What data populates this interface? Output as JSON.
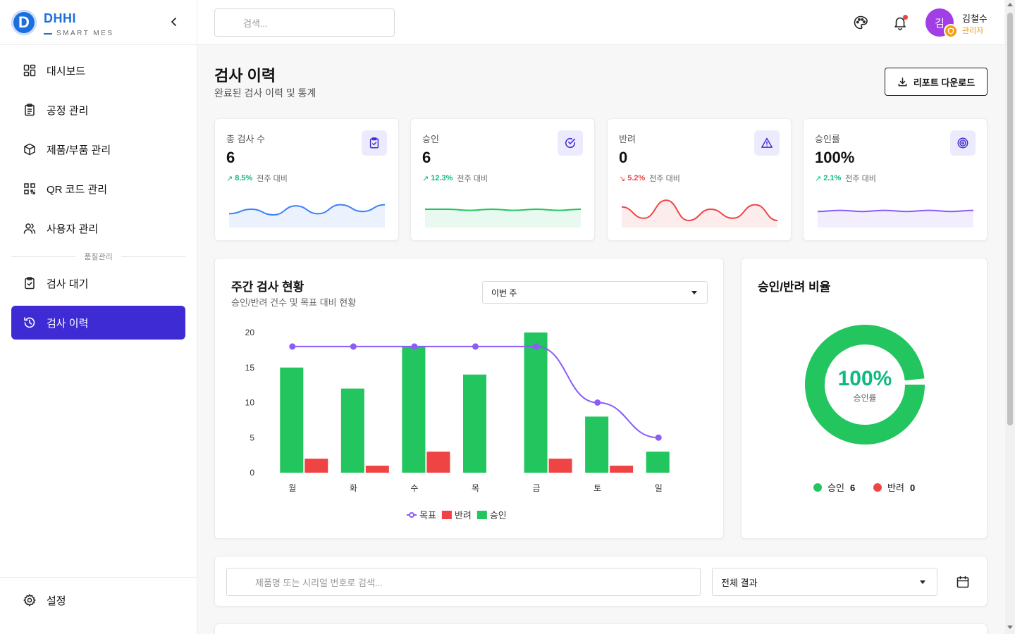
{
  "brand": {
    "logo_letter": "D",
    "name": "DHHI",
    "sub": "SMART MES"
  },
  "sidebar": {
    "items": [
      {
        "label": "대시보드",
        "icon": "dashboard-icon"
      },
      {
        "label": "공정 관리",
        "icon": "clipboard-icon"
      },
      {
        "label": "제품/부품 관리",
        "icon": "box-icon"
      },
      {
        "label": "QR 코드 관리",
        "icon": "qr-icon"
      },
      {
        "label": "사용자 관리",
        "icon": "users-icon"
      }
    ],
    "section_label": "품질관리",
    "quality_items": [
      {
        "label": "검사 대기",
        "icon": "clipboard-check-icon"
      },
      {
        "label": "검사 이력",
        "icon": "history-icon",
        "active": true
      }
    ],
    "settings_label": "설정"
  },
  "topbar": {
    "search_placeholder": "검색...",
    "user": {
      "avatar_initial": "김",
      "name": "김철수",
      "role": "관리자"
    }
  },
  "page": {
    "title": "검사 이력",
    "subtitle": "완료된 검사 이력 및 통계",
    "report_button": "리포트 다운로드"
  },
  "stats": [
    {
      "label": "총 검사 수",
      "value": "6",
      "change": "8.5%",
      "trend": "up",
      "vs": "전주 대비",
      "icon": "clipboard-check-icon",
      "color": "#3b82f6",
      "spark": [
        14,
        10,
        15,
        7,
        14,
        6,
        12,
        6
      ]
    },
    {
      "label": "승인",
      "value": "6",
      "change": "12.3%",
      "trend": "up",
      "vs": "전주 대비",
      "icon": "check-circle-icon",
      "color": "#22c55e",
      "spark": [
        10,
        10,
        11,
        10,
        11,
        10,
        11,
        10
      ]
    },
    {
      "label": "반려",
      "value": "0",
      "change": "5.2%",
      "trend": "down",
      "vs": "전주 대비",
      "icon": "alert-triangle-icon",
      "color": "#ef4444",
      "spark": [
        8,
        18,
        2,
        20,
        10,
        18,
        6,
        20
      ]
    },
    {
      "label": "승인률",
      "value": "100%",
      "change": "2.1%",
      "trend": "up",
      "vs": "전주 대비",
      "icon": "target-icon",
      "color": "#8b5cf6",
      "spark": [
        12,
        11,
        12,
        11,
        12,
        11,
        12,
        11
      ]
    }
  ],
  "weekly": {
    "title": "주간 검사 현황",
    "subtitle": "승인/반려 건수 및 목표 대비 현황",
    "period": "이번 주"
  },
  "chart_data": {
    "type": "bar",
    "categories": [
      "월",
      "화",
      "수",
      "목",
      "금",
      "토",
      "일"
    ],
    "series": [
      {
        "name": "승인",
        "type": "bar",
        "color": "#22c55e",
        "values": [
          15,
          12,
          18,
          14,
          20,
          8,
          3
        ]
      },
      {
        "name": "반려",
        "type": "bar",
        "color": "#ef4444",
        "values": [
          2,
          1,
          3,
          0,
          2,
          1,
          0
        ]
      },
      {
        "name": "목표",
        "type": "line",
        "color": "#8b5cf6",
        "values": [
          18,
          18,
          18,
          18,
          18,
          10,
          5
        ]
      }
    ],
    "legend_order": [
      "목표",
      "반려",
      "승인"
    ],
    "ylim": [
      0,
      20
    ],
    "yticks": [
      0,
      5,
      10,
      15,
      20
    ],
    "legend": "bottom",
    "grid": false
  },
  "ratio": {
    "title": "승인/반려 비율",
    "center_value": "100%",
    "center_label": "승인률",
    "approved_label": "승인",
    "approved_value": "6",
    "rejected_label": "반려",
    "rejected_value": "0",
    "approved_color": "#22c55e",
    "rejected_color": "#ef4444"
  },
  "filter": {
    "search_placeholder": "제품명 또는 시리얼 번호로 검색...",
    "result_select": "전체 결과"
  }
}
